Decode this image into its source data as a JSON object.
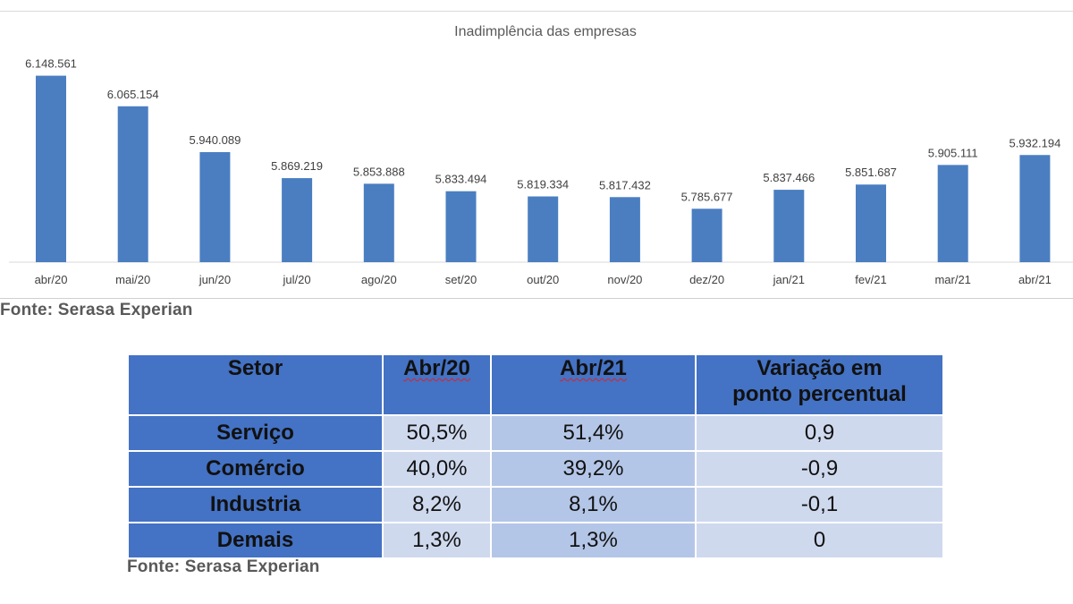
{
  "chart_data": {
    "type": "bar",
    "title": "Inadimplência das empresas",
    "categories": [
      "abr/20",
      "mai/20",
      "jun/20",
      "jul/20",
      "ago/20",
      "set/20",
      "out/20",
      "nov/20",
      "dez/20",
      "jan/21",
      "fev/21",
      "mar/21",
      "abr/21"
    ],
    "values": [
      6148561,
      6065154,
      5940089,
      5869219,
      5853888,
      5833494,
      5819334,
      5817432,
      5785677,
      5837466,
      5851687,
      5905111,
      5932194
    ],
    "value_labels": [
      "6.148.561",
      "6.065.154",
      "5.940.089",
      "5.869.219",
      "5.853.888",
      "5.833.494",
      "5.819.334",
      "5.817.432",
      "5.785.677",
      "5.837.466",
      "5.851.687",
      "5.905.111",
      "5.932.194"
    ],
    "ylim": [
      5640000,
      6150000
    ],
    "grid": false,
    "bar_color": "#4a7ec1"
  },
  "chart_source": "Fonte: Serasa Experian",
  "table": {
    "headers": {
      "setor": "Setor",
      "abr20": "Abr/20",
      "abr21": "Abr/21",
      "variacao_line1": "Variação em",
      "variacao_line2": "ponto percentual"
    },
    "rows": [
      {
        "setor": "Serviço",
        "abr20": "50,5%",
        "abr21": "51,4%",
        "variacao": "0,9"
      },
      {
        "setor": "Comércio",
        "abr20": "40,0%",
        "abr21": "39,2%",
        "variacao": "-0,9"
      },
      {
        "setor": "Industria",
        "abr20": "8,2%",
        "abr21": "8,1%",
        "variacao": "-0,1"
      },
      {
        "setor": "Demais",
        "abr20": "1,3%",
        "abr21": "1,3%",
        "variacao": "0"
      }
    ],
    "colors": {
      "header": "#4472c4",
      "cell_light": "#cfd9ee",
      "cell_mid": "#b4c6e7"
    }
  },
  "table_source": "Fonte: Serasa Experian"
}
